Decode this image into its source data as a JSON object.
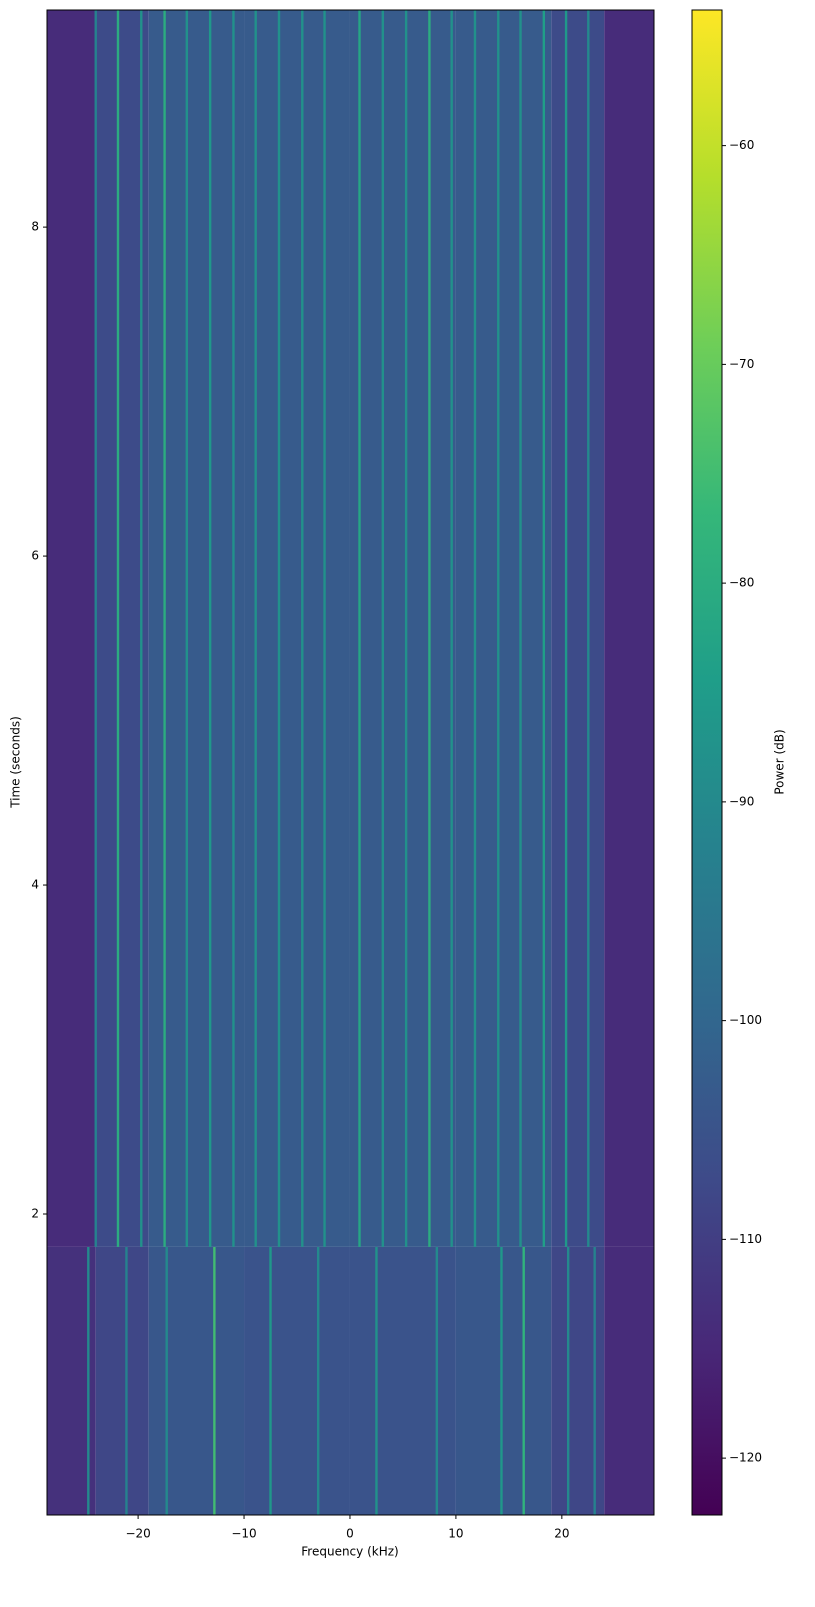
{
  "chart_data": {
    "type": "spectrogram",
    "xlabel": "Frequency (kHz)",
    "ylabel": "Time (seconds)",
    "colorbar_label": "Power (dB)",
    "colormap": "viridis",
    "xlim": [
      -28.6,
      28.7
    ],
    "ylim": [
      0.17,
      9.32
    ],
    "clim": [
      -122.6,
      -53.8
    ],
    "xticks": [
      {
        "value": -20,
        "label": "−20"
      },
      {
        "value": -10,
        "label": "−10"
      },
      0,
      10,
      20
    ],
    "yticks": [
      2,
      4,
      6,
      8
    ],
    "cticks": [
      {
        "value": -60,
        "label": "−60"
      },
      {
        "value": -70,
        "label": "−70"
      },
      {
        "value": -80,
        "label": "−80"
      },
      {
        "value": -90,
        "label": "−90"
      },
      {
        "value": -100,
        "label": "−100"
      },
      {
        "value": -110,
        "label": "−110"
      },
      {
        "value": -120,
        "label": "−120"
      }
    ],
    "segments": [
      {
        "time": [
          0.17,
          1.8
        ],
        "floor_edges": [
          -28.6,
          -24,
          -19,
          -10,
          0,
          10,
          19,
          24,
          28.7
        ],
        "floor_values": [
          -113,
          -108,
          -104,
          -105,
          -105,
          -104,
          -108,
          -114
        ],
        "tone_freqs": [
          -24.7,
          -21.1,
          -17.3,
          -12.8,
          -7.5,
          -3,
          2.5,
          8.2,
          14.3,
          16.4,
          20.6,
          23.1
        ],
        "tone_powers": [
          -90,
          -92,
          -90,
          -75,
          -86,
          -90,
          -88,
          -90,
          -86,
          -78,
          -90,
          -92
        ]
      },
      {
        "time": [
          1.8,
          9.32
        ],
        "floor_edges": [
          -28.6,
          -24,
          -19,
          -10,
          0,
          10,
          19,
          24,
          28.7
        ],
        "floor_values": [
          -114,
          -107,
          -103,
          -103,
          -103,
          -103,
          -107,
          -114
        ],
        "tone_freqs": [
          -24,
          -21.9,
          -19.7,
          -17.5,
          -15.4,
          -13.2,
          -11,
          -8.9,
          -6.7,
          -4.5,
          -2.4,
          0.9,
          3.1,
          5.3,
          7.5,
          9.6,
          11.8,
          14,
          16.1,
          18.3,
          20.4,
          22.5
        ],
        "tone_powers": [
          -92,
          -80,
          -88,
          -80,
          -88,
          -86,
          -88,
          -88,
          -88,
          -88,
          -88,
          -82,
          -88,
          -88,
          -80,
          -88,
          -88,
          -88,
          -88,
          -84,
          -86,
          -90
        ]
      }
    ]
  }
}
